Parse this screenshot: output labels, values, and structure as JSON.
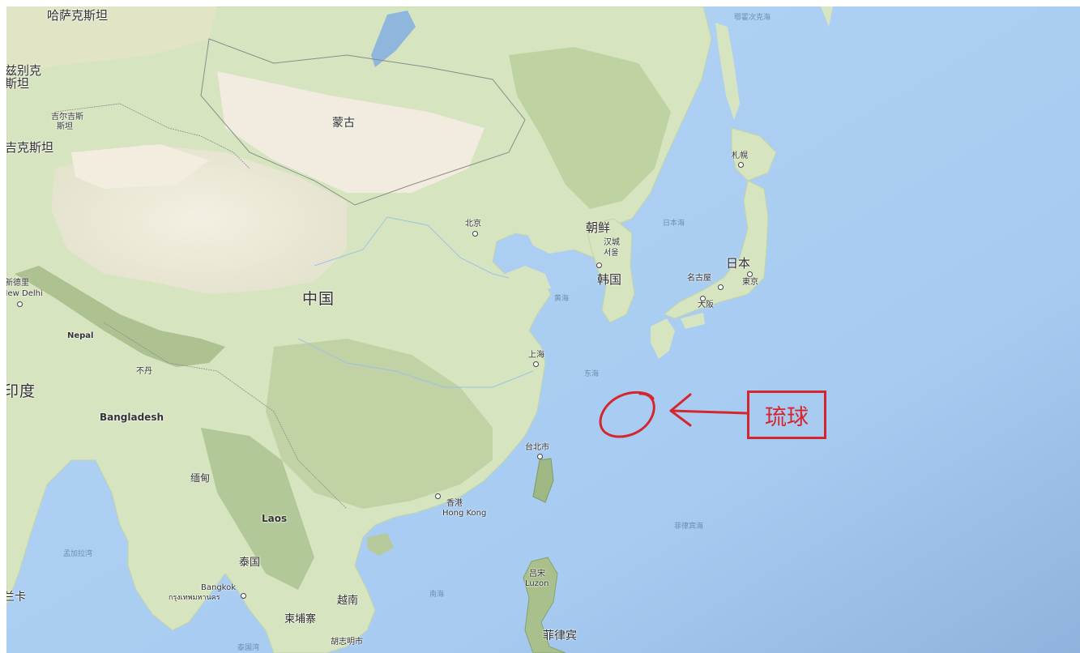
{
  "map": {
    "countries": {
      "kazakhstan": "哈萨克斯坦",
      "uzbekistan_a": "兹别克",
      "uzbekistan_b": "斯坦",
      "kyrgyzstan_a": "吉尔吉斯",
      "kyrgyzstan_b": "斯坦",
      "tajikistan": "吉克斯坦",
      "mongolia": "蒙古",
      "china": "中国",
      "north_korea": "朝鲜",
      "south_korea": "韩国",
      "japan": "日本",
      "india": "印度",
      "nepal": "Nepal",
      "bhutan": "不丹",
      "bangladesh": "Bangladesh",
      "myanmar": "缅甸",
      "laos": "Laos",
      "thailand": "泰国",
      "vietnam": "越南",
      "cambodia": "柬埔寨",
      "philippines": "菲律宾",
      "sri_lanka": "兰卡"
    },
    "cities": {
      "beijing": "北京",
      "seoul_cn": "汉城",
      "seoul_kr": "서울",
      "shanghai": "上海",
      "taipei": "台北市",
      "hong_kong_cn": "香港",
      "hong_kong_en": "Hong Kong",
      "sapporo": "札幌",
      "tokyo": "東京",
      "nagoya": "名古屋",
      "osaka": "大阪",
      "new_delhi_cn": "新德里",
      "new_delhi_en": "New Delhi",
      "bangkok_en": "Bangkok",
      "bangkok_th": "กรุงเทพมหานคร",
      "luzon_cn": "吕宋",
      "luzon_en": "Luzon",
      "hcmc": "胡志明市"
    },
    "waters": {
      "okhotsk": "鄂霍次克海",
      "sea_of_japan": "日本海",
      "yellow_sea": "黄海",
      "east_china_sea": "东海",
      "philippine_sea": "菲律宾海",
      "south_china_sea": "南海",
      "bay_of_bengal": "孟加拉湾",
      "gulf_of_thailand": "泰国湾"
    }
  },
  "annotation": {
    "label": "琉球",
    "color": "#d6262d"
  },
  "colors": {
    "ocean": "#a9cdf2",
    "land": "#d9e7c3",
    "plateau": "#efeadc",
    "mountain": "#9db47e"
  }
}
